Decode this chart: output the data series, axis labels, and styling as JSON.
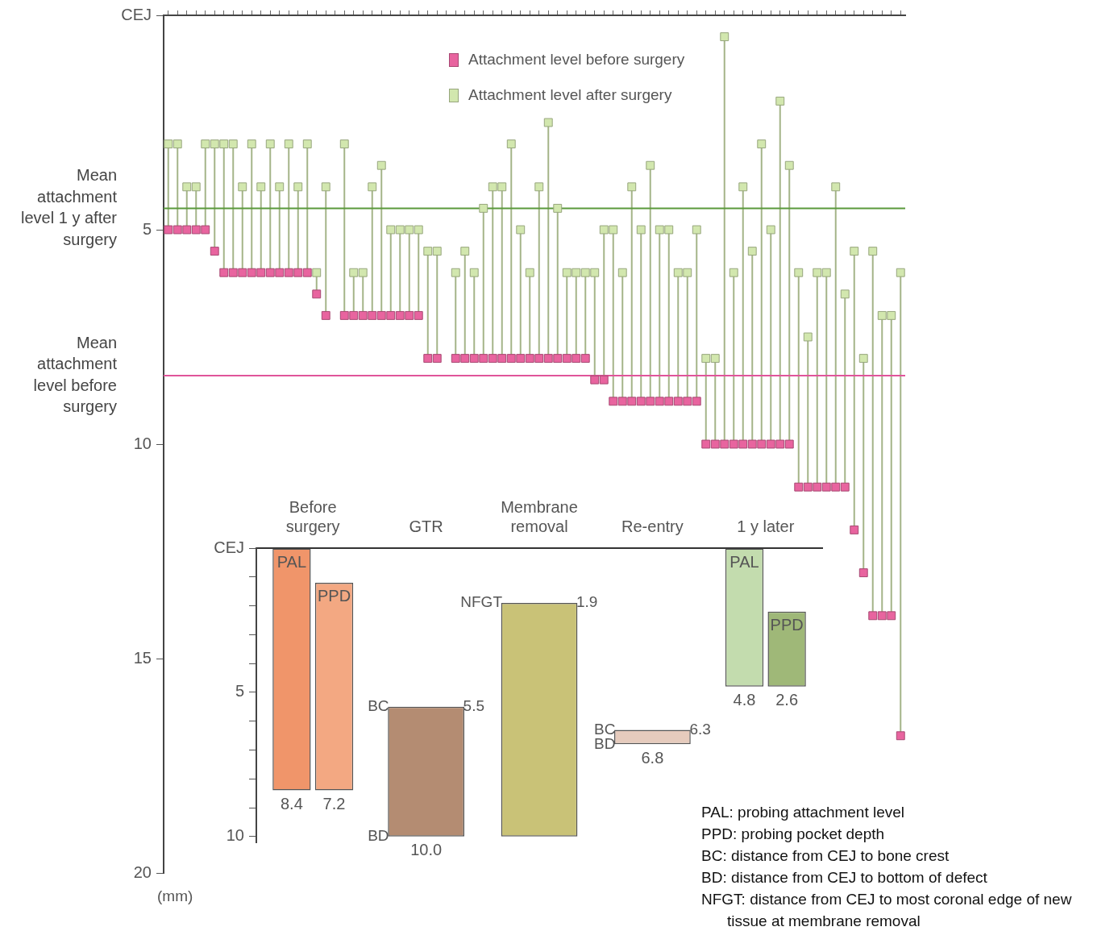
{
  "chart_data": [
    {
      "type": "scatter",
      "categories": [
        null,
        null,
        null,
        null,
        null,
        null,
        null,
        null,
        null,
        null,
        null,
        null,
        null,
        null,
        null,
        null,
        null,
        null,
        null,
        null,
        null,
        null,
        null,
        null,
        null,
        null,
        null,
        null,
        null,
        null,
        null,
        null,
        null,
        null,
        null,
        null,
        null,
        null,
        null,
        null,
        null,
        null,
        null,
        null,
        null,
        null,
        null,
        null,
        null,
        null,
        null,
        null,
        null,
        null,
        null,
        null,
        null,
        null,
        null,
        null,
        null,
        null,
        null,
        null,
        null,
        null,
        null,
        null,
        null,
        null,
        null,
        null,
        null,
        null,
        null,
        null,
        null,
        null,
        null,
        null
      ],
      "series": [
        {
          "name": "Attachment level before surgery",
          "color": "#e8649f",
          "values": [
            5,
            5,
            5,
            5,
            5,
            5.5,
            6,
            6,
            6,
            6,
            6,
            6,
            6,
            6,
            6,
            6,
            6.5,
            7,
            null,
            7,
            7,
            7,
            7,
            7,
            7,
            7,
            7,
            7,
            8,
            8,
            null,
            8,
            8,
            8,
            8,
            8,
            8,
            8,
            8,
            8,
            8,
            8,
            8,
            8,
            8,
            8,
            8.5,
            8.5,
            9,
            9,
            9,
            9,
            9,
            9,
            9,
            9,
            9,
            9,
            10,
            10,
            10,
            10,
            10,
            10,
            10,
            10,
            10,
            10,
            11,
            11,
            11,
            11,
            11,
            11,
            12,
            13,
            14,
            14,
            14,
            16.8
          ]
        },
        {
          "name": "Attachment level after surgery",
          "color": "#d2e7ae",
          "values": [
            3,
            3,
            4,
            4,
            3,
            3,
            3,
            3,
            4,
            3,
            4,
            3,
            4,
            3,
            4,
            3,
            6,
            4,
            null,
            3,
            6,
            6,
            4,
            3.5,
            5,
            5,
            5,
            5,
            5.5,
            5.5,
            null,
            6,
            5.5,
            6,
            4.5,
            4,
            4,
            3,
            5,
            6,
            4,
            2.5,
            4.5,
            6,
            6,
            6,
            6,
            5,
            5,
            6,
            4,
            5,
            3.5,
            5,
            5,
            6,
            6,
            5,
            8,
            8,
            0.5,
            6,
            4,
            5.5,
            3,
            5,
            2,
            3.5,
            6,
            7.5,
            6,
            6,
            4,
            6.5,
            5.5,
            8,
            5.5,
            7,
            7,
            6
          ]
        }
      ],
      "ylim": [
        20,
        0
      ],
      "yticks": [
        {
          "value": 0,
          "label": "CEJ"
        },
        5,
        10,
        15,
        20
      ],
      "annotations": [
        "(mm)"
      ],
      "ref_lines": [
        {
          "axis": "y",
          "value": 4.5,
          "label": "Mean attachment level 1 y after surgery",
          "color": "#5a9a3c"
        },
        {
          "axis": "y",
          "value": 8.4,
          "label": "Mean attachment level before surgery",
          "color": "#e0559a"
        }
      ],
      "legend": "top",
      "marker": "square",
      "grid": false,
      "tick_labels": "y"
    },
    {
      "type": "bar",
      "categories": [
        "Before surgery",
        "GTR",
        "Membrane removal",
        "Re-entry",
        "1 y later"
      ],
      "series": [
        {
          "name": "PAL",
          "colors": [
            "#f0956a",
            null,
            null,
            null,
            "#c3dcae"
          ],
          "values": [
            8.4,
            null,
            null,
            null,
            4.8
          ],
          "base": [
            0,
            null,
            null,
            null,
            0
          ],
          "value_labels": [
            "8.4",
            null,
            null,
            null,
            "4.8"
          ]
        },
        {
          "name": "PPD",
          "colors": [
            "#f3a882",
            null,
            null,
            null,
            "#9fb878"
          ],
          "values": [
            7.2,
            null,
            null,
            null,
            2.6
          ],
          "base": [
            1.2,
            null,
            null,
            null,
            2.2
          ],
          "value_labels": [
            "7.2",
            null,
            null,
            null,
            "2.6"
          ]
        },
        {
          "colors": [
            null,
            "#b48c72",
            "#c9c277",
            "#e6cbbd",
            null
          ],
          "values": [
            null,
            4.5,
            8.1,
            0.5,
            null
          ],
          "base": [
            null,
            5.5,
            1.9,
            6.3,
            null
          ],
          "value_labels": [
            null,
            "10.0",
            null,
            "6.8",
            null
          ]
        }
      ],
      "ylim": [
        10.2,
        0
      ],
      "yticks": [
        {
          "value": 0,
          "label": "CEJ"
        },
        {
          "value": 1,
          "label": null
        },
        {
          "value": 2,
          "label": null
        },
        {
          "value": 3,
          "label": null
        },
        {
          "value": 4,
          "label": null
        },
        5,
        {
          "value": 6,
          "label": null
        },
        {
          "value": 7,
          "label": null
        },
        {
          "value": 8,
          "label": null
        },
        {
          "value": 9,
          "label": null
        },
        10
      ],
      "grid": false,
      "annotations": [
        {
          "text": "BC",
          "x": "GTR",
          "y": 5.5
        },
        {
          "text": "5.5",
          "x": "GTR",
          "y": 5.5
        },
        {
          "text": "BD",
          "x": "GTR",
          "y": 10
        },
        {
          "text": "NFGT",
          "x": "Membrane removal",
          "y": 1.9
        },
        {
          "text": "1.9",
          "x": "Membrane removal",
          "y": 1.9
        },
        {
          "text": "BC",
          "x": "Re-entry",
          "y": 6.3
        },
        {
          "text": "6.3",
          "x": "Re-entry",
          "y": 6.3
        },
        {
          "text": "BD",
          "x": "Re-entry",
          "y": 6.8
        },
        "PAL: probing attachment level",
        "PPD: probing pocket depth",
        "BC: distance from CEJ to bone crest",
        "BD: distance from CEJ to bottom of defect",
        "NFGT: distance from CEJ to most coronal edge of new tissue at membrane removal"
      ]
    }
  ]
}
